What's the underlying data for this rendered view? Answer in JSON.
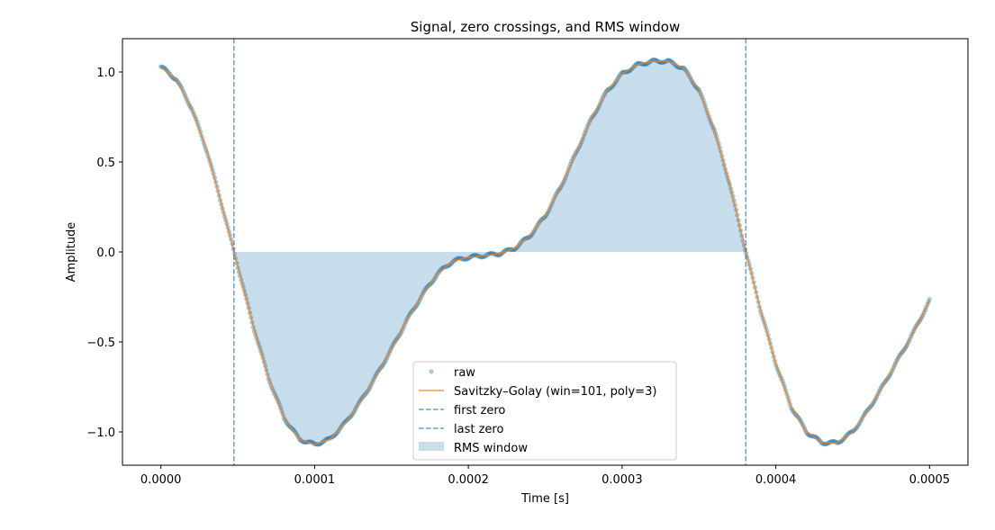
{
  "chart_data": {
    "type": "line",
    "title": "Signal, zero crossings, and RMS window",
    "xlabel": "Time [s]",
    "ylabel": "Amplitude",
    "xlim": [
      -2.5e-05,
      0.000525
    ],
    "ylim": [
      -1.185,
      1.185
    ],
    "xticks": [
      0.0,
      0.0001,
      0.0002,
      0.0003,
      0.0004,
      0.0005
    ],
    "xtick_labels": [
      "0.0000",
      "0.0001",
      "0.0002",
      "0.0003",
      "0.0004",
      "0.0005"
    ],
    "yticks": [
      -1.0,
      -0.5,
      0.0,
      0.5,
      1.0
    ],
    "ytick_labels": [
      "−1.0",
      "−0.5",
      "0.0",
      "0.5",
      "1.0"
    ],
    "grid": false,
    "legend_position": "lower-center",
    "series": [
      {
        "name": "raw",
        "style": "markers",
        "color": "#1f77b4"
      },
      {
        "name": "Savitzky–Golay (win=101, poly=3)",
        "style": "line",
        "color": "#ff7f0e"
      },
      {
        "name": "first zero",
        "style": "dashed-vline",
        "color": "#1f77b4",
        "x": 4.75e-05
      },
      {
        "name": "last zero",
        "style": "dashed-vline",
        "color": "#1f77b4",
        "x": 0.0003805
      },
      {
        "name": "RMS window",
        "style": "fill",
        "color": "#1f77b4",
        "x_range": [
          4.75e-05,
          0.0003805
        ]
      }
    ],
    "signal_points": [
      [
        0.0,
        1.03
      ],
      [
        1e-05,
        0.96
      ],
      [
        2e-05,
        0.8
      ],
      [
        3e-05,
        0.56
      ],
      [
        4e-05,
        0.25
      ],
      [
        5e-05,
        -0.08
      ],
      [
        6e-05,
        -0.41
      ],
      [
        7e-05,
        -0.7
      ],
      [
        8e-05,
        -0.92
      ],
      [
        9e-05,
        -1.04
      ],
      [
        0.0001,
        -1.07
      ],
      [
        0.00011,
        -1.04
      ],
      [
        0.00012,
        -0.95
      ],
      [
        0.00013,
        -0.83
      ],
      [
        0.00014,
        -0.69
      ],
      [
        0.00015,
        -0.54
      ],
      [
        0.00016,
        -0.38
      ],
      [
        0.00017,
        -0.24
      ],
      [
        0.00018,
        -0.12
      ],
      [
        0.00019,
        -0.05
      ],
      [
        0.0002,
        -0.03
      ],
      [
        0.00021,
        -0.02
      ],
      [
        0.00022,
        -0.01
      ],
      [
        0.00023,
        0.02
      ],
      [
        0.00024,
        0.09
      ],
      [
        0.00025,
        0.2
      ],
      [
        0.00026,
        0.36
      ],
      [
        0.00027,
        0.55
      ],
      [
        0.00028,
        0.74
      ],
      [
        0.00029,
        0.89
      ],
      [
        0.0003,
        0.99
      ],
      [
        0.00031,
        1.04
      ],
      [
        0.00032,
        1.06
      ],
      [
        0.00033,
        1.06
      ],
      [
        0.00034,
        1.02
      ],
      [
        0.00035,
        0.9
      ],
      [
        0.00036,
        0.68
      ],
      [
        0.00037,
        0.38
      ],
      [
        0.00038,
        0.02
      ],
      [
        0.00039,
        -0.32
      ],
      [
        0.0004,
        -0.62
      ],
      [
        0.00041,
        -0.86
      ],
      [
        0.00042,
        -1.0
      ],
      [
        0.00043,
        -1.06
      ],
      [
        0.00044,
        -1.06
      ],
      [
        0.00045,
        -1.0
      ],
      [
        0.00046,
        -0.88
      ],
      [
        0.00047,
        -0.74
      ],
      [
        0.00048,
        -0.59
      ],
      [
        0.00049,
        -0.44
      ],
      [
        0.0005,
        -0.27
      ]
    ]
  }
}
